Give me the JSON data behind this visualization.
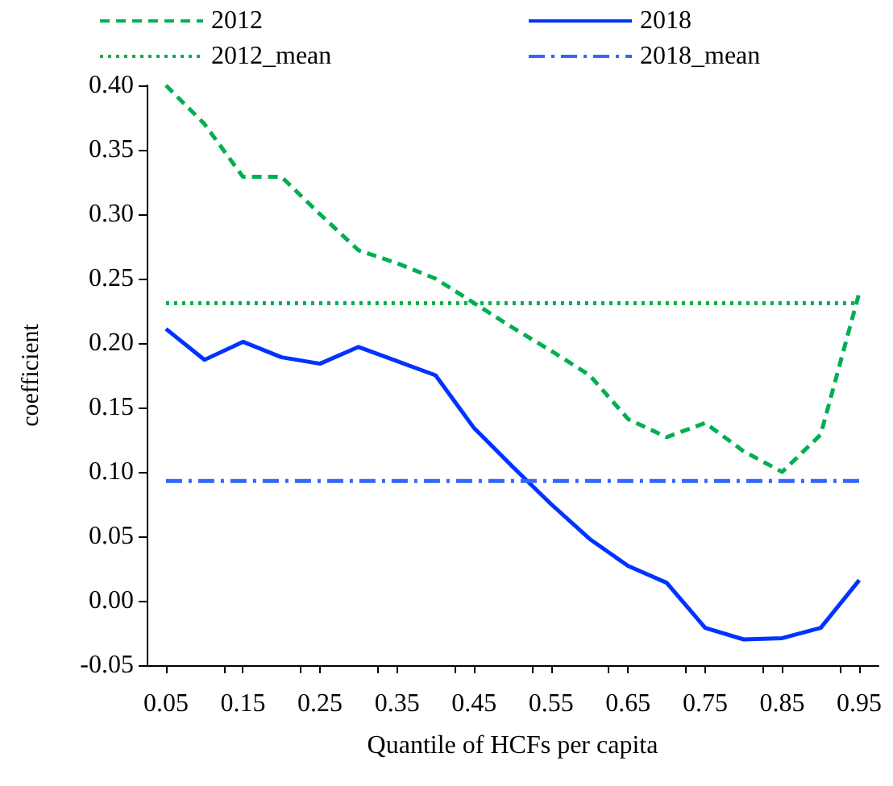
{
  "chart_data": {
    "type": "line",
    "xlabel": "Quantile of HCFs per capita",
    "ylabel": "coefficient",
    "xlim": [
      0.025,
      0.975
    ],
    "xticks": [
      0.05,
      {
        "value": 0.125,
        "label": null
      },
      0.15,
      {
        "value": 0.225,
        "label": null
      },
      0.25,
      {
        "value": 0.325,
        "label": null
      },
      0.35,
      {
        "value": 0.425,
        "label": null
      },
      0.45,
      {
        "value": 0.525,
        "label": null
      },
      0.55,
      {
        "value": 0.625,
        "label": null
      },
      0.65,
      {
        "value": 0.725,
        "label": null
      },
      0.75,
      {
        "value": 0.825,
        "label": null
      },
      0.85,
      {
        "value": 0.925,
        "label": null
      },
      0.95
    ],
    "ylim": [
      -0.05,
      0.4
    ],
    "yticks": [
      -0.05,
      {
        "value": 0,
        "label": "0.00"
      },
      0.05,
      {
        "value": 0.1,
        "label": "0.10"
      },
      0.15,
      {
        "value": 0.2,
        "label": "0.20"
      },
      0.25,
      {
        "value": 0.3,
        "label": "0.30"
      },
      0.35,
      {
        "value": 0.4,
        "label": "0.40"
      }
    ],
    "x": [
      0.05,
      0.1,
      0.15,
      0.2,
      0.25,
      0.3,
      0.35,
      0.4,
      0.45,
      0.5,
      0.55,
      0.6,
      0.65,
      0.7,
      0.75,
      0.8,
      0.85,
      0.9,
      0.95
    ],
    "series": [
      {
        "name": "2012",
        "color": "#00b050",
        "line_style": "dashed",
        "values": [
          0.4,
          0.37,
          0.329,
          0.329,
          0.3,
          0.272,
          0.262,
          0.25,
          0.231,
          0.212,
          0.194,
          0.175,
          0.141,
          0.127,
          0.138,
          0.116,
          0.1,
          0.129,
          0.239
        ]
      },
      {
        "name": "2018",
        "color": "#0033ff",
        "line_style": "solid",
        "values": [
          0.211,
          0.187,
          0.201,
          0.189,
          0.184,
          0.197,
          0.186,
          0.175,
          0.134,
          0.104,
          0.075,
          0.048,
          0.027,
          0.014,
          -0.021,
          -0.03,
          -0.029,
          -0.021,
          0.016
        ]
      },
      {
        "name": "2012_mean",
        "color": "#00b050",
        "line_style": "dotted",
        "values": [
          0.231,
          0.231,
          0.231,
          0.231,
          0.231,
          0.231,
          0.231,
          0.231,
          0.231,
          0.231,
          0.231,
          0.231,
          0.231,
          0.231,
          0.231,
          0.231,
          0.231,
          0.231,
          0.231
        ]
      },
      {
        "name": "2018_mean",
        "color": "#3366ff",
        "line_style": "dashdot",
        "values": [
          0.093,
          0.093,
          0.093,
          0.093,
          0.093,
          0.093,
          0.093,
          0.093,
          0.093,
          0.093,
          0.093,
          0.093,
          0.093,
          0.093,
          0.093,
          0.093,
          0.093,
          0.093,
          0.093
        ]
      }
    ],
    "grid": false,
    "legend": "top",
    "marker": "none"
  }
}
